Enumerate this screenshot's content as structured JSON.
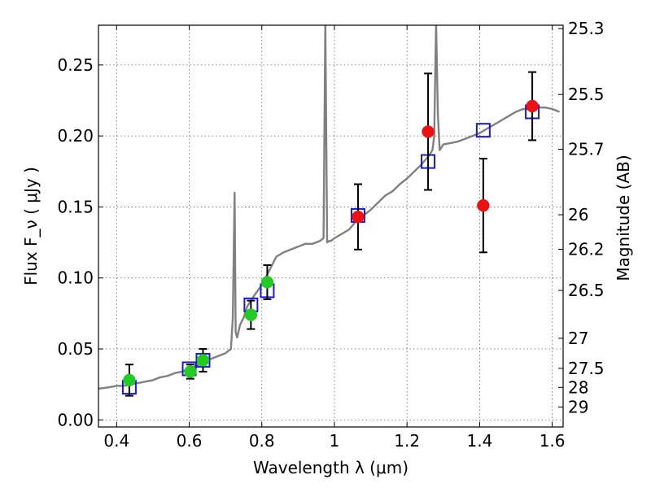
{
  "chart_data": {
    "type": "scatter",
    "xlabel": "Wavelength  λ (μm)",
    "ylabel": "Flux  F_ν  ( μJy )",
    "y2label": "Magnitude (AB)",
    "xlim": [
      0.35,
      1.63
    ],
    "ylim": [
      -0.005,
      0.278
    ],
    "x_ticks": [
      0.4,
      0.6,
      0.8,
      1.0,
      1.2,
      1.4,
      1.6
    ],
    "x_tick_labels": [
      "0.4",
      "0.6",
      "0.8",
      "1",
      "1.2",
      "1.4",
      "1.6"
    ],
    "y_ticks": [
      0.0,
      0.05,
      0.1,
      0.15,
      0.2,
      0.25
    ],
    "y_tick_labels": [
      "0.00",
      "0.05",
      "0.10",
      "0.15",
      "0.20",
      "0.25"
    ],
    "magnitude_ticks": [
      {
        "flux": 0.2756,
        "label": "25.3"
      },
      {
        "flux": 0.2292,
        "label": "25.5"
      },
      {
        "flux": 0.1906,
        "label": "25.7"
      },
      {
        "flux": 0.1445,
        "label": "26"
      },
      {
        "flux": 0.1202,
        "label": "26.2"
      },
      {
        "flux": 0.0912,
        "label": "26.5"
      },
      {
        "flux": 0.0575,
        "label": "27"
      },
      {
        "flux": 0.0363,
        "label": "27.5"
      },
      {
        "flux": 0.0229,
        "label": "28"
      },
      {
        "flux": 0.0091,
        "label": "29"
      }
    ],
    "grid": true,
    "colors": {
      "spectrum": "#808080",
      "green_points": "#22cc22",
      "red_points": "#ee1111",
      "model_squares": "#1a1acc",
      "errorbars": "#000000"
    },
    "series": [
      {
        "marker": "line",
        "x": [
          0.35,
          0.38,
          0.4,
          0.42,
          0.44,
          0.46,
          0.48,
          0.5,
          0.52,
          0.54,
          0.56,
          0.58,
          0.6,
          0.62,
          0.64,
          0.66,
          0.68,
          0.7,
          0.715,
          0.72,
          0.725,
          0.728,
          0.732,
          0.74,
          0.75,
          0.76,
          0.78,
          0.8,
          0.82,
          0.84,
          0.86,
          0.88,
          0.9,
          0.92,
          0.94,
          0.96,
          0.97,
          0.975,
          0.98,
          0.985,
          0.99,
          1.0,
          1.02,
          1.04,
          1.06,
          1.08,
          1.1,
          1.12,
          1.14,
          1.16,
          1.18,
          1.2,
          1.22,
          1.24,
          1.26,
          1.27,
          1.275,
          1.28,
          1.285,
          1.29,
          1.3,
          1.32,
          1.34,
          1.36,
          1.38,
          1.4,
          1.42,
          1.44,
          1.46,
          1.48,
          1.5,
          1.52,
          1.54,
          1.56,
          1.58,
          1.6,
          1.62
        ],
        "y": [
          0.022,
          0.023,
          0.024,
          0.024,
          0.025,
          0.026,
          0.027,
          0.028,
          0.03,
          0.031,
          0.033,
          0.034,
          0.036,
          0.038,
          0.04,
          0.043,
          0.045,
          0.047,
          0.05,
          0.072,
          0.16,
          0.062,
          0.058,
          0.067,
          0.072,
          0.08,
          0.088,
          0.095,
          0.105,
          0.115,
          0.118,
          0.12,
          0.122,
          0.124,
          0.124,
          0.126,
          0.128,
          0.28,
          0.125,
          0.126,
          0.126,
          0.128,
          0.131,
          0.134,
          0.14,
          0.144,
          0.148,
          0.153,
          0.158,
          0.161,
          0.166,
          0.17,
          0.175,
          0.18,
          0.186,
          0.19,
          0.2,
          0.28,
          0.215,
          0.19,
          0.194,
          0.195,
          0.196,
          0.198,
          0.2,
          0.202,
          0.205,
          0.208,
          0.211,
          0.214,
          0.217,
          0.219,
          0.219,
          0.22,
          0.22,
          0.219,
          0.217
        ]
      },
      {
        "marker": "square",
        "x": [
          0.435,
          0.6,
          0.638,
          0.77,
          0.815,
          1.065,
          1.258,
          1.41,
          1.545
        ],
        "y": [
          0.023,
          0.036,
          0.042,
          0.081,
          0.091,
          0.144,
          0.182,
          0.204,
          0.217
        ]
      },
      {
        "marker": "circle",
        "color_key": "green_points",
        "x": [
          0.435,
          0.603,
          0.638,
          0.77,
          0.815
        ],
        "y": [
          0.028,
          0.034,
          0.042,
          0.074,
          0.097
        ],
        "yerr": [
          0.011,
          0.005,
          0.008,
          0.01,
          0.012
        ]
      },
      {
        "marker": "circle",
        "color_key": "red_points",
        "x": [
          1.065,
          1.258,
          1.41,
          1.545
        ],
        "y": [
          0.143,
          0.203,
          0.151,
          0.221
        ],
        "yerr": [
          0.023,
          0.041,
          0.033,
          0.024
        ]
      }
    ]
  }
}
